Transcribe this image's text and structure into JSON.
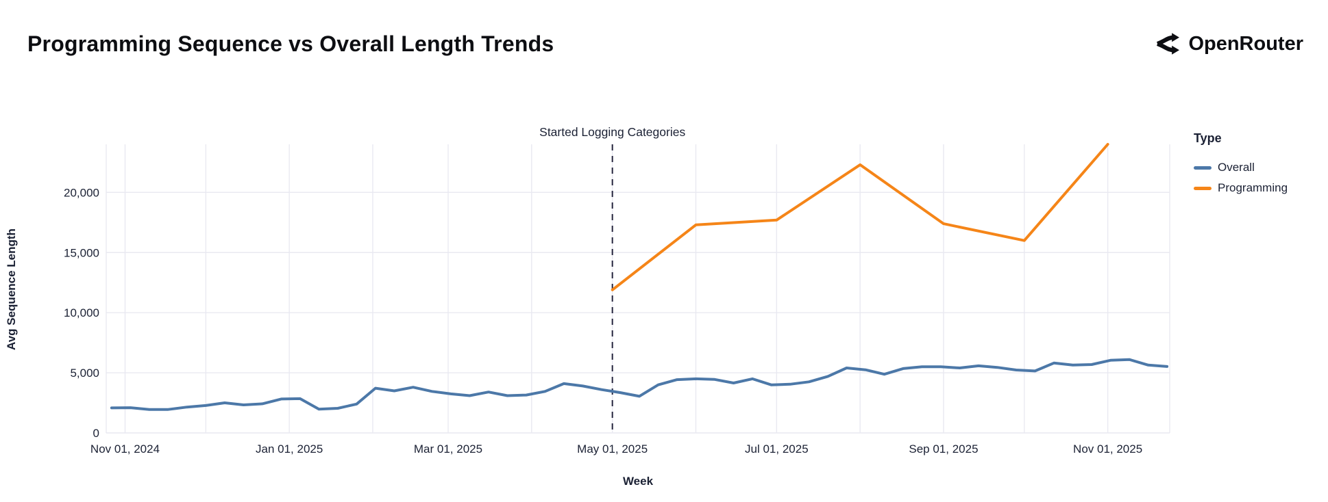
{
  "header": {
    "title": "Programming Sequence vs Overall Length Trends",
    "brand": "OpenRouter"
  },
  "chart_data": {
    "type": "line",
    "title": "Programming Sequence vs Overall Length Trends",
    "xlabel": "Week",
    "ylabel": "Avg Sequence Length",
    "grid": true,
    "background": "#ffffff",
    "gridline_color": "#e9e9f1",
    "text_color": "#1b2134",
    "ylim": [
      0,
      24000
    ],
    "y_ticks": [
      0,
      5000,
      10000,
      15000,
      20000
    ],
    "y_tick_labels": [
      "0",
      "5,000",
      "10,000",
      "15,000",
      "20,000"
    ],
    "x_domain": [
      "2024-10-25",
      "2025-11-24"
    ],
    "month_grid_dates": [
      "2024-11-01",
      "2024-12-01",
      "2025-01-01",
      "2025-02-01",
      "2025-03-01",
      "2025-04-01",
      "2025-05-01",
      "2025-06-01",
      "2025-07-01",
      "2025-08-01",
      "2025-09-01",
      "2025-10-01",
      "2025-11-01"
    ],
    "x_ticks": [
      {
        "date": "2024-11-01",
        "label": "Nov 01, 2024"
      },
      {
        "date": "2025-01-01",
        "label": "Jan 01, 2025"
      },
      {
        "date": "2025-03-01",
        "label": "Mar 01, 2025"
      },
      {
        "date": "2025-05-01",
        "label": "May 01, 2025"
      },
      {
        "date": "2025-07-01",
        "label": "Jul 01, 2025"
      },
      {
        "date": "2025-09-01",
        "label": "Sep 01, 2025"
      },
      {
        "date": "2025-11-01",
        "label": "Nov 01, 2025"
      }
    ],
    "annotation": {
      "text": "Started Logging Categories",
      "date": "2025-05-01",
      "line_style": "dashed",
      "line_color": "#23233c"
    },
    "legend": {
      "title": "Type",
      "position": "right",
      "entries": [
        {
          "label": "Overall",
          "color": "#4c78a8"
        },
        {
          "label": "Programming",
          "color": "#f58518"
        }
      ]
    },
    "series": [
      {
        "name": "Overall",
        "color": "#4c78a8",
        "start_date": "2024-10-27",
        "interval_days": 7,
        "values": [
          2080,
          2100,
          1950,
          1950,
          2150,
          2280,
          2500,
          2330,
          2420,
          2820,
          2850,
          1980,
          2050,
          2400,
          3720,
          3500,
          3800,
          3450,
          3250,
          3100,
          3400,
          3100,
          3150,
          3450,
          4100,
          3900,
          3600,
          3350,
          3050,
          4000,
          4430,
          4500,
          4450,
          4150,
          4500,
          4000,
          4050,
          4250,
          4700,
          5400,
          5250,
          4880,
          5350,
          5500,
          5500,
          5400,
          5580,
          5450,
          5230,
          5150,
          5810,
          5640,
          5690,
          6040,
          6100,
          5640,
          5520
        ]
      },
      {
        "name": "Programming",
        "color": "#f58518",
        "dates": [
          "2025-05-01",
          "2025-06-01",
          "2025-07-01",
          "2025-08-01",
          "2025-09-01",
          "2025-10-01",
          "2025-11-01"
        ],
        "values": [
          11900,
          17300,
          17700,
          22300,
          17400,
          16000,
          24000
        ]
      }
    ]
  }
}
